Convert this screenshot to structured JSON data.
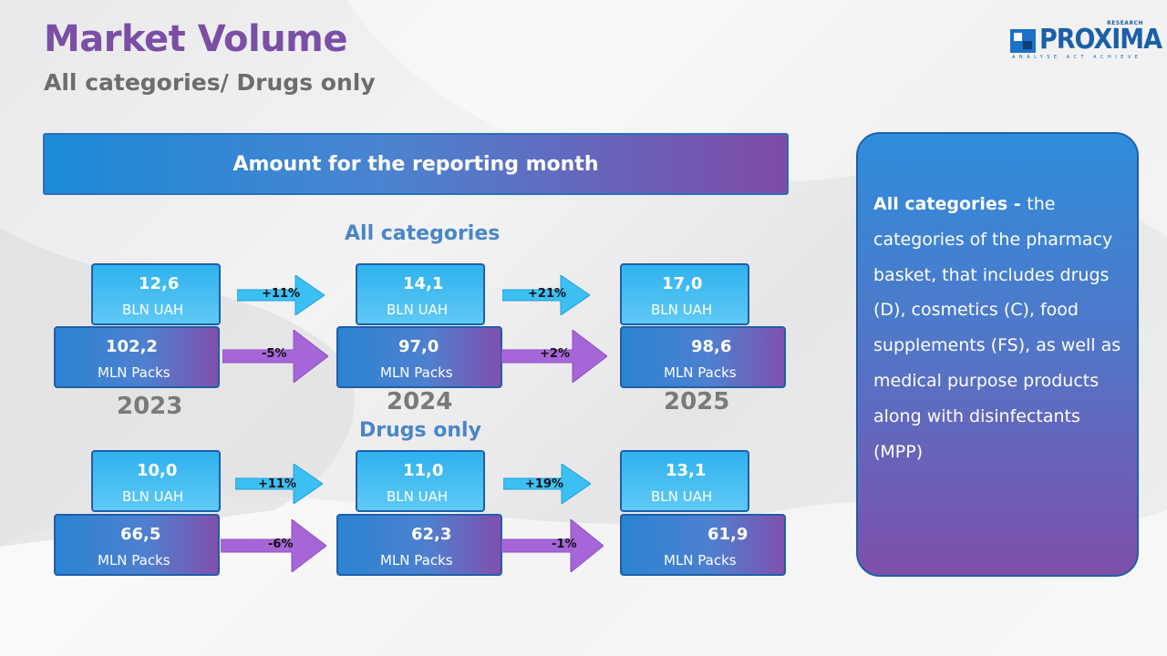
{
  "header": {
    "title": "Market Volume",
    "subtitle": "All categories/ Drugs only"
  },
  "logo": {
    "word": "PROXIMA",
    "research": "RESEARCH",
    "tagline": "ANALYSE ACT ACHIEVE"
  },
  "banner": {
    "label": "Amount for the reporting month"
  },
  "sections": {
    "all_categories": {
      "heading": "All categories",
      "years": [
        "2023",
        "2024",
        "2025"
      ],
      "uah": [
        "12,6",
        "14,1",
        "17,0"
      ],
      "uah_unit": "BLN UAH",
      "packs": [
        "102,2",
        "97,0",
        "98,6"
      ],
      "packs_unit": "MLN Packs",
      "uah_changes": [
        "+11%",
        "+21%"
      ],
      "packs_changes": [
        "-5%",
        "+2%"
      ]
    },
    "drugs_only": {
      "heading": "Drugs only",
      "uah": [
        "10,0",
        "11,0",
        "13,1"
      ],
      "uah_unit": "BLN UAH",
      "packs": [
        "66,5",
        "62,3",
        "61,9"
      ],
      "packs_unit": "MLN Packs",
      "uah_changes": [
        "+11%",
        "+19%"
      ],
      "packs_changes": [
        "-6%",
        "-1%"
      ]
    }
  },
  "sidebar": {
    "term": "All categories - ",
    "definition": " the categories of the pharmacy basket, that includes drugs (D), cosmetics (C), food supplements (FS), as well as medical purpose products along with disinfectants (MPP)"
  },
  "colors": {
    "title": "#7b4fa6",
    "section_heading": "#4a86c8",
    "blue_arrow": "#3cc0f4",
    "purple_arrow": "#a766d8"
  }
}
